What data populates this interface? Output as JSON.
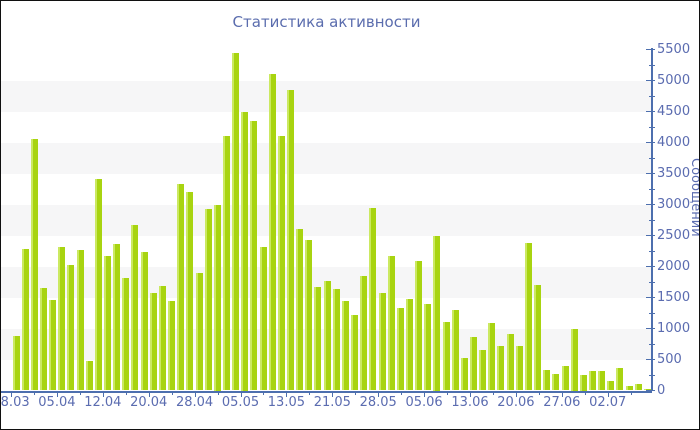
{
  "title": "Статистика активности",
  "y_axis_title": "Сообщений",
  "colors": {
    "bar_main": "#a8d410",
    "bar_highlight": "#cbe961",
    "axis": "#4d6fae",
    "label_text": "#5b6cb0",
    "title_text": "#5b6dae",
    "stripe_gray": "#f6f6f7",
    "background": "#ffffff"
  },
  "chart_data": {
    "type": "bar",
    "title": "Статистика активности",
    "xlabel": "",
    "ylabel": "Сообщений",
    "ylim": [
      0,
      5500
    ],
    "y_tick_step": 500,
    "y_minor_tick_step": 250,
    "grid": "striped-horizontal-bands",
    "legend": "none",
    "y_tick_labels": [
      "0",
      "500",
      "1000",
      "1500",
      "2000",
      "2500",
      "3000",
      "3500",
      "4000",
      "4500",
      "5000",
      "5500"
    ],
    "x_tick_labels": [
      "28.03",
      "05.04",
      "12.04",
      "20.04",
      "28.04",
      "05.05",
      "13.05",
      "21.05",
      "28.05",
      "05.06",
      "13.06",
      "20.06",
      "27.06",
      "02.07"
    ],
    "values": [
      880,
      2280,
      4050,
      1650,
      1460,
      2320,
      2020,
      2270,
      480,
      3410,
      2170,
      2360,
      1810,
      2670,
      2230,
      1580,
      1690,
      1450,
      3330,
      3200,
      1900,
      2920,
      3000,
      4100,
      5450,
      4500,
      4350,
      2320,
      5100,
      4100,
      4850,
      2600,
      2430,
      1670,
      1760,
      1630,
      1450,
      1220,
      1850,
      2940,
      1580,
      2170,
      1330,
      1480,
      2090,
      1390,
      2500,
      1100,
      1300,
      520,
      870,
      660,
      1090,
      710,
      910,
      710,
      2380,
      1700,
      330,
      270,
      400,
      1000,
      250,
      310,
      310,
      160,
      360,
      70,
      110,
      20
    ]
  }
}
